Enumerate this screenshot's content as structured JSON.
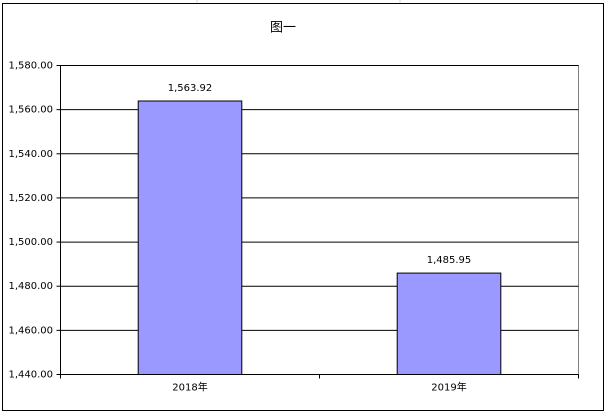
{
  "chart_data": {
    "type": "bar",
    "title": "图一",
    "categories": [
      "2018年",
      "2019年"
    ],
    "values": [
      1563.92,
      1485.95
    ],
    "value_labels": [
      "1,563.92",
      "1,485.95"
    ],
    "color": "#9999ff",
    "ylim": [
      1440,
      1580
    ],
    "yticks": [
      {
        "value": 1440,
        "label": "1,440.00"
      },
      {
        "value": 1460,
        "label": "1,460.00"
      },
      {
        "value": 1480,
        "label": "1,480.00"
      },
      {
        "value": 1500,
        "label": "1,500.00"
      },
      {
        "value": 1520,
        "label": "1,520.00"
      },
      {
        "value": 1540,
        "label": "1,540.00"
      },
      {
        "value": 1560,
        "label": "1,560.00"
      },
      {
        "value": 1580,
        "label": "1,580.00"
      }
    ],
    "grid": true
  }
}
